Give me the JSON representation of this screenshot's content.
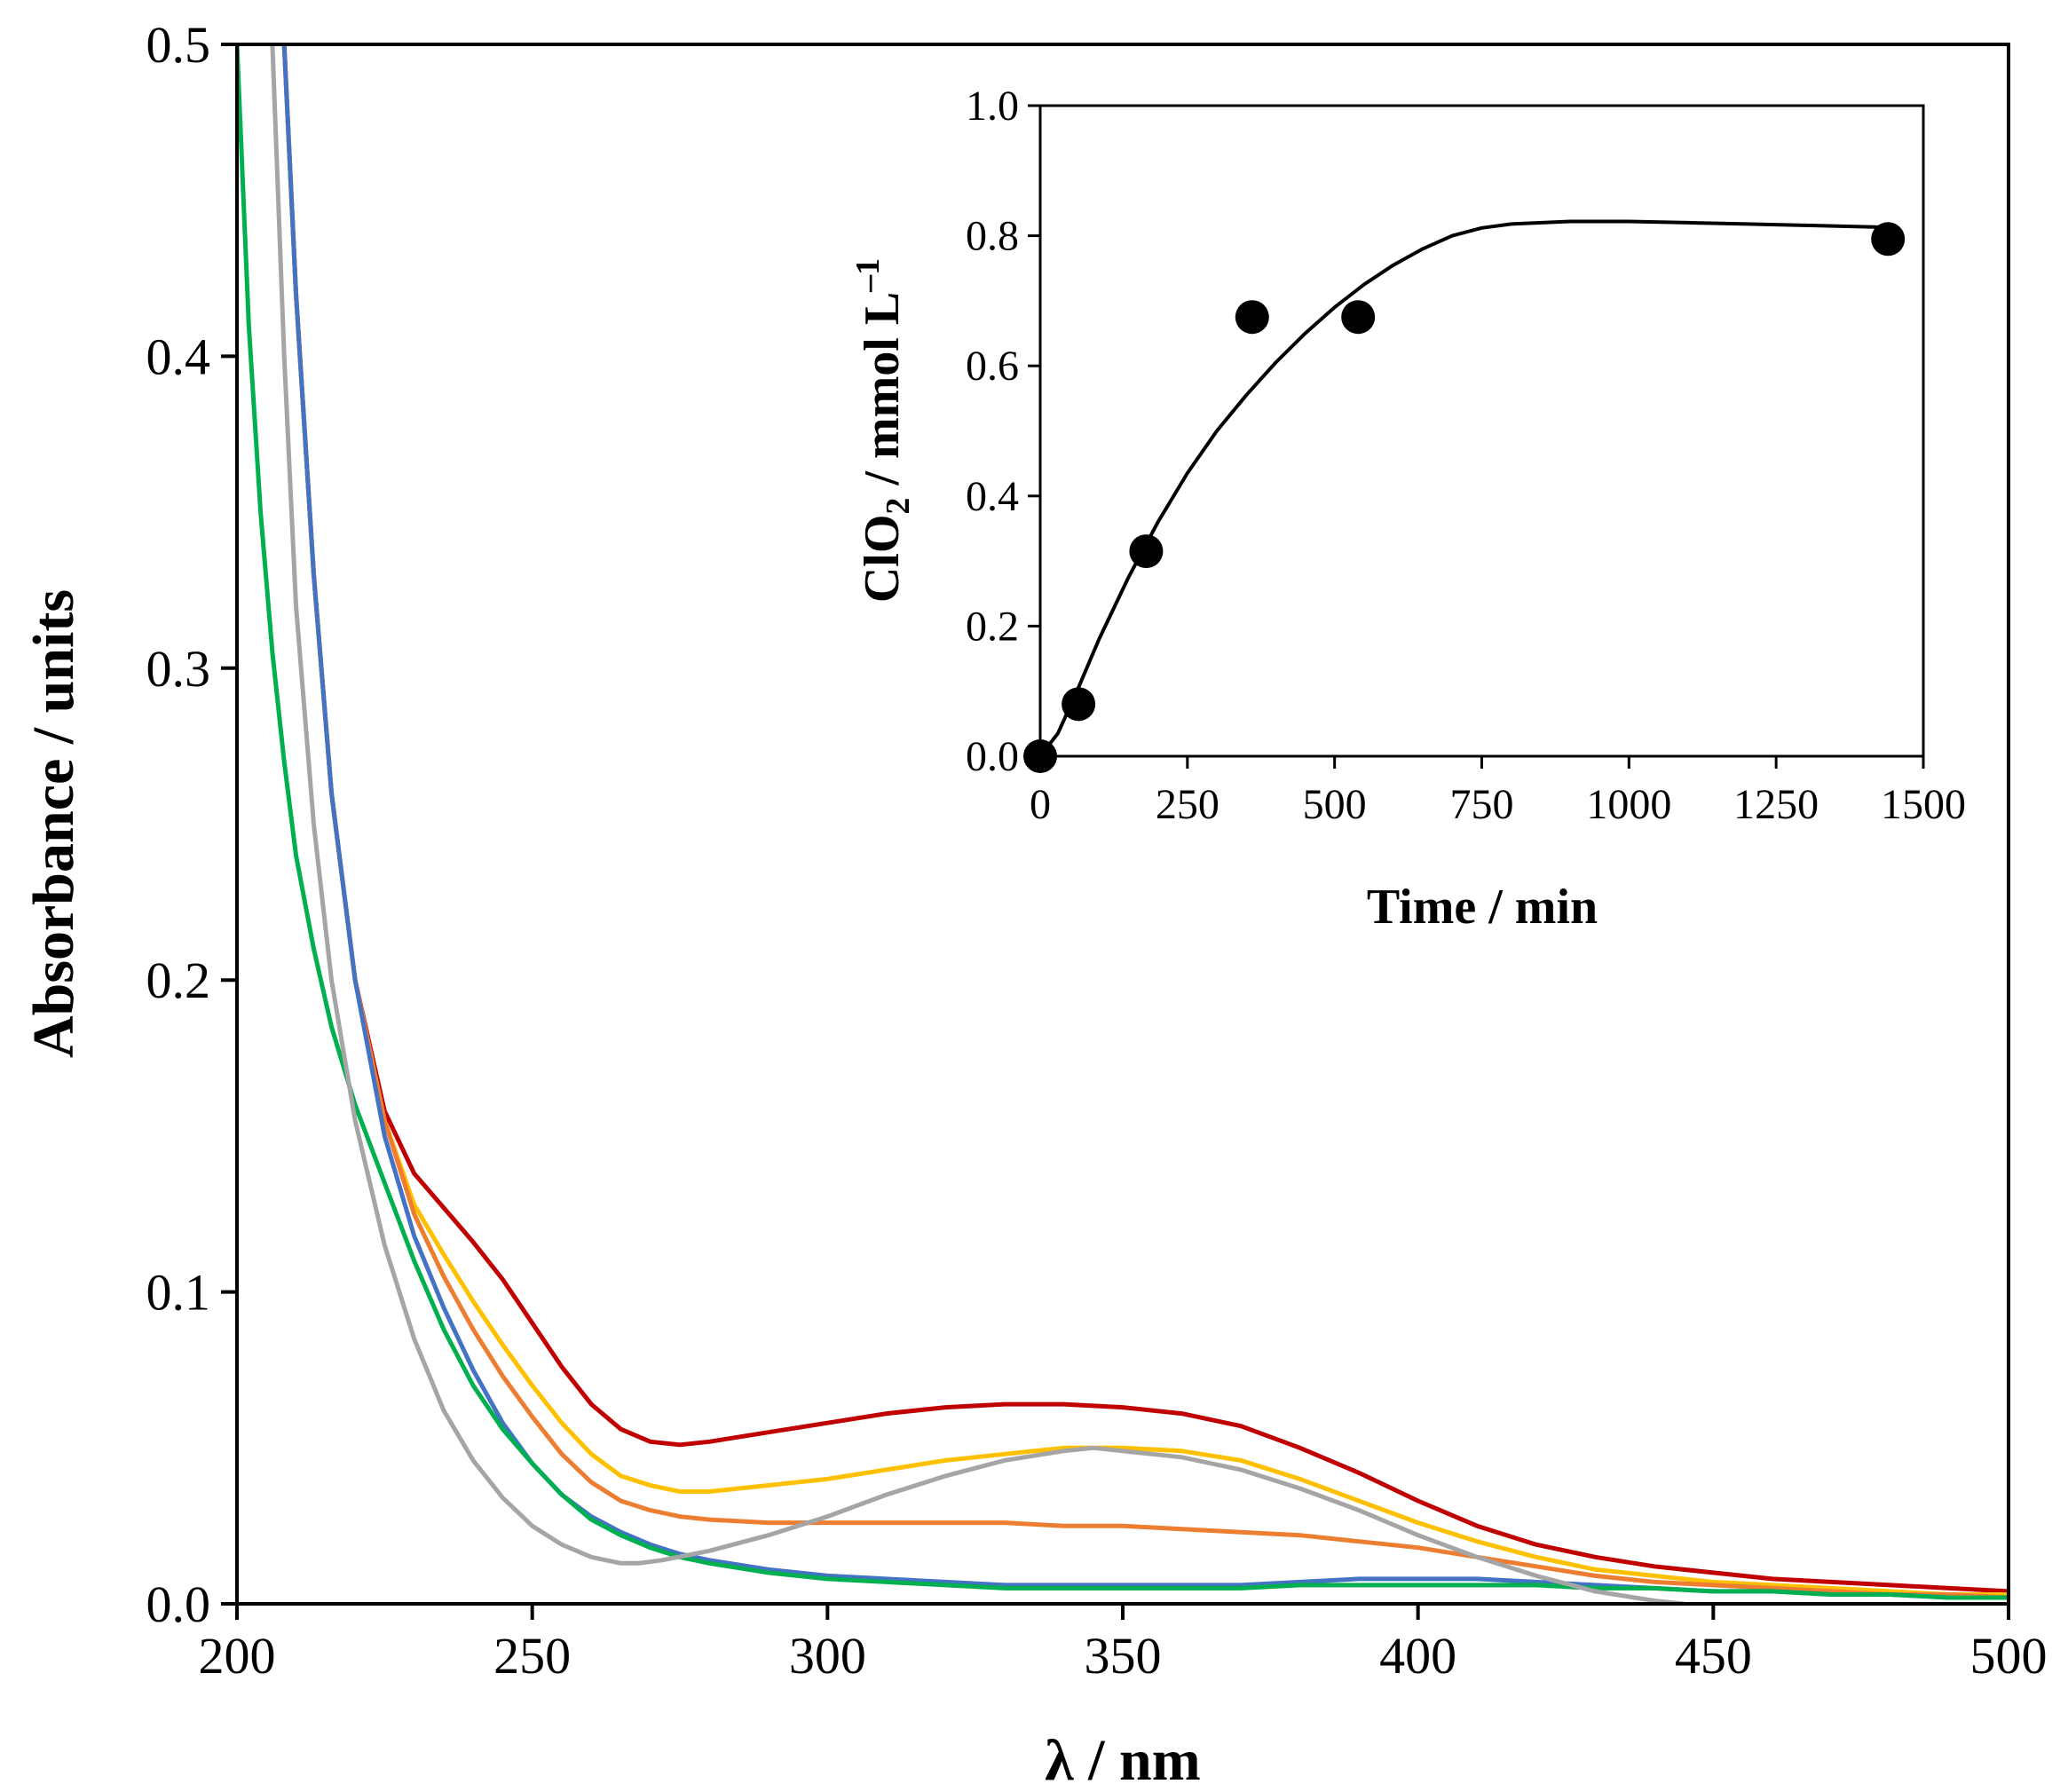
{
  "chart_data": [
    {
      "type": "line",
      "title": "",
      "xlabel": "λ / nm",
      "ylabel": "Absorbance / units",
      "xlim": [
        200,
        500
      ],
      "ylim": [
        0,
        0.5
      ],
      "xticks": [
        200,
        250,
        300,
        350,
        400,
        450,
        500
      ],
      "xtick_labels": [
        "200",
        "250",
        "300",
        "350",
        "400",
        "450",
        "500"
      ],
      "yticks": [
        0,
        0.1,
        0.2,
        0.3,
        0.4,
        0.5
      ],
      "ytick_labels": [
        "0.0",
        "0.1",
        "0.2",
        "0.3",
        "0.4",
        "0.5"
      ],
      "grid": false,
      "legend": "none",
      "series": [
        {
          "name": "red",
          "color": "#c00000",
          "x": [
            208,
            210,
            213,
            216,
            220,
            225,
            230,
            235,
            240,
            245,
            250,
            255,
            260,
            265,
            270,
            275,
            280,
            290,
            300,
            310,
            320,
            330,
            340,
            350,
            360,
            370,
            380,
            390,
            400,
            410,
            420,
            430,
            440,
            450,
            460,
            470,
            480,
            490,
            500
          ],
          "y": [
            0.5,
            0.42,
            0.33,
            0.26,
            0.2,
            0.158,
            0.138,
            0.127,
            0.116,
            0.104,
            0.09,
            0.076,
            0.064,
            0.056,
            0.052,
            0.051,
            0.052,
            0.055,
            0.058,
            0.061,
            0.063,
            0.064,
            0.064,
            0.063,
            0.061,
            0.057,
            0.05,
            0.042,
            0.033,
            0.025,
            0.019,
            0.015,
            0.012,
            0.01,
            0.008,
            0.007,
            0.006,
            0.005,
            0.004
          ]
        },
        {
          "name": "yellow",
          "color": "#ffc000",
          "x": [
            208,
            210,
            213,
            216,
            220,
            225,
            230,
            235,
            240,
            245,
            250,
            255,
            260,
            265,
            270,
            275,
            280,
            290,
            300,
            310,
            320,
            330,
            340,
            350,
            360,
            370,
            380,
            390,
            400,
            410,
            420,
            430,
            440,
            450,
            460,
            470,
            480,
            490,
            500
          ],
          "y": [
            0.5,
            0.42,
            0.33,
            0.26,
            0.2,
            0.155,
            0.128,
            0.112,
            0.097,
            0.083,
            0.07,
            0.058,
            0.048,
            0.041,
            0.038,
            0.036,
            0.036,
            0.038,
            0.04,
            0.043,
            0.046,
            0.048,
            0.05,
            0.05,
            0.049,
            0.046,
            0.04,
            0.033,
            0.026,
            0.02,
            0.015,
            0.011,
            0.009,
            0.007,
            0.006,
            0.005,
            0.004,
            0.003,
            0.003
          ]
        },
        {
          "name": "orange",
          "color": "#ed7d31",
          "x": [
            208,
            210,
            213,
            216,
            220,
            225,
            230,
            235,
            240,
            245,
            250,
            255,
            260,
            265,
            270,
            275,
            280,
            290,
            300,
            310,
            320,
            330,
            340,
            350,
            360,
            370,
            380,
            390,
            400,
            410,
            420,
            430,
            440,
            450,
            460,
            470,
            480,
            490,
            500
          ],
          "y": [
            0.5,
            0.42,
            0.33,
            0.26,
            0.2,
            0.155,
            0.125,
            0.105,
            0.088,
            0.073,
            0.06,
            0.048,
            0.039,
            0.033,
            0.03,
            0.028,
            0.027,
            0.026,
            0.026,
            0.026,
            0.026,
            0.026,
            0.025,
            0.025,
            0.024,
            0.023,
            0.022,
            0.02,
            0.018,
            0.015,
            0.012,
            0.009,
            0.007,
            0.006,
            0.005,
            0.004,
            0.003,
            0.003,
            0.002
          ]
        },
        {
          "name": "blue",
          "color": "#4472c4",
          "x": [
            208,
            210,
            213,
            216,
            220,
            225,
            230,
            235,
            240,
            245,
            250,
            255,
            260,
            265,
            270,
            275,
            280,
            290,
            300,
            310,
            320,
            330,
            340,
            350,
            360,
            370,
            380,
            390,
            400,
            410,
            420,
            430,
            440,
            450,
            460,
            470,
            480,
            490,
            500
          ],
          "y": [
            0.5,
            0.42,
            0.33,
            0.26,
            0.2,
            0.15,
            0.118,
            0.095,
            0.075,
            0.058,
            0.045,
            0.035,
            0.028,
            0.023,
            0.019,
            0.016,
            0.014,
            0.011,
            0.009,
            0.008,
            0.007,
            0.006,
            0.006,
            0.006,
            0.006,
            0.006,
            0.007,
            0.008,
            0.008,
            0.008,
            0.007,
            0.006,
            0.005,
            0.004,
            0.004,
            0.003,
            0.003,
            0.002,
            0.002
          ]
        },
        {
          "name": "green",
          "color": "#00b050",
          "x": [
            200,
            202,
            204,
            206,
            208,
            210,
            213,
            216,
            220,
            225,
            230,
            235,
            240,
            245,
            250,
            255,
            260,
            265,
            270,
            275,
            280,
            290,
            300,
            310,
            320,
            330,
            340,
            350,
            360,
            370,
            380,
            390,
            400,
            410,
            420,
            430,
            440,
            450,
            460,
            470,
            480,
            490,
            500
          ],
          "y": [
            0.5,
            0.41,
            0.35,
            0.305,
            0.27,
            0.24,
            0.21,
            0.185,
            0.16,
            0.135,
            0.11,
            0.088,
            0.07,
            0.056,
            0.045,
            0.035,
            0.027,
            0.022,
            0.018,
            0.015,
            0.013,
            0.01,
            0.008,
            0.007,
            0.006,
            0.005,
            0.005,
            0.005,
            0.005,
            0.005,
            0.006,
            0.006,
            0.006,
            0.006,
            0.006,
            0.005,
            0.005,
            0.004,
            0.004,
            0.003,
            0.003,
            0.002,
            0.002
          ]
        },
        {
          "name": "gray",
          "color": "#a5a5a5",
          "x": [
            206,
            208,
            210,
            213,
            216,
            220,
            225,
            230,
            235,
            240,
            245,
            250,
            255,
            260,
            265,
            268,
            272,
            280,
            290,
            300,
            310,
            320,
            330,
            340,
            345,
            350,
            360,
            370,
            380,
            390,
            400,
            410,
            420,
            430,
            440,
            445
          ],
          "y": [
            0.5,
            0.4,
            0.32,
            0.25,
            0.2,
            0.155,
            0.115,
            0.085,
            0.062,
            0.046,
            0.034,
            0.025,
            0.019,
            0.015,
            0.013,
            0.013,
            0.014,
            0.017,
            0.022,
            0.028,
            0.035,
            0.041,
            0.046,
            0.049,
            0.05,
            0.049,
            0.047,
            0.043,
            0.037,
            0.03,
            0.022,
            0.015,
            0.009,
            0.004,
            0.001,
            0.0
          ]
        }
      ]
    },
    {
      "type": "scatter",
      "title": "",
      "xlabel": "Time / min",
      "ylabel": "ClO₂ / mmol L⁻¹",
      "ylabel_parts": [
        "ClO",
        "2",
        " / mmol L",
        "–1"
      ],
      "xlim": [
        0,
        1500
      ],
      "ylim": [
        0,
        1.0
      ],
      "xticks": [
        0,
        250,
        500,
        750,
        1000,
        1250,
        1500
      ],
      "xtick_labels": [
        "0",
        "250",
        "500",
        "750",
        "1000",
        "1250",
        "1500"
      ],
      "yticks": [
        0,
        0.2,
        0.4,
        0.6,
        0.8,
        1.0
      ],
      "ytick_labels": [
        "0.0",
        "0.2",
        "0.4",
        "0.6",
        "0.8",
        "1.0"
      ],
      "grid": false,
      "legend": "none",
      "points": {
        "x": [
          0,
          65,
          180,
          360,
          540,
          1440
        ],
        "y": [
          0.0,
          0.08,
          0.315,
          0.675,
          0.675,
          0.795
        ]
      },
      "fit": {
        "x": [
          0,
          30,
          60,
          100,
          150,
          200,
          250,
          300,
          350,
          400,
          450,
          500,
          550,
          600,
          650,
          700,
          750,
          800,
          900,
          1000,
          1100,
          1200,
          1300,
          1440
        ],
        "y": [
          0.0,
          0.035,
          0.095,
          0.18,
          0.275,
          0.36,
          0.435,
          0.5,
          0.555,
          0.605,
          0.65,
          0.69,
          0.725,
          0.755,
          0.78,
          0.8,
          0.812,
          0.818,
          0.822,
          0.822,
          0.82,
          0.818,
          0.816,
          0.813
        ]
      }
    }
  ]
}
